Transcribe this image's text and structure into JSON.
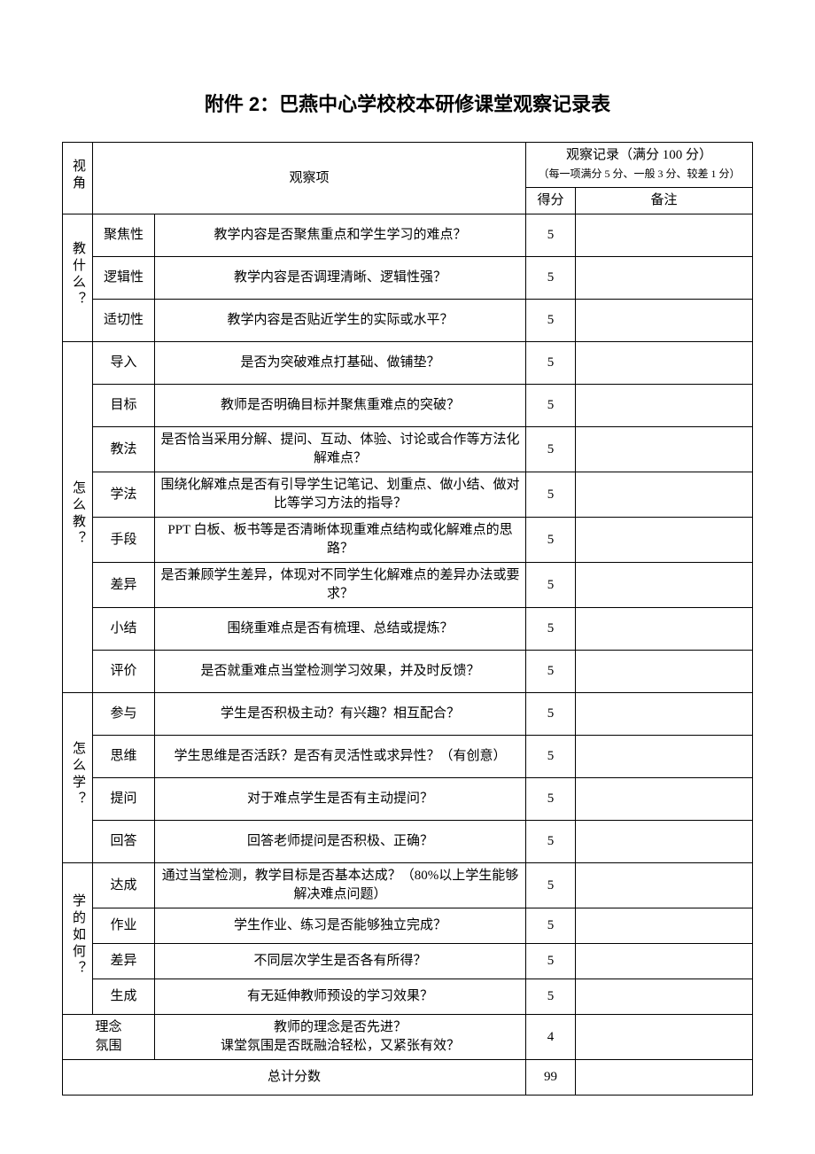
{
  "title": "附件 2：巴燕中心学校校本研修课堂观察记录表",
  "headers": {
    "perspective": "视角",
    "observation_item": "观察项",
    "record_title": "观察记录（满分 100 分）",
    "record_subtitle": "（每一项满分 5 分、一般 3 分、较差 1 分）",
    "score": "得分",
    "note": "备注"
  },
  "groups": [
    {
      "label": "教什么？",
      "rows": [
        {
          "item": "聚焦性",
          "question": "教学内容是否聚焦重点和学生学习的难点？",
          "score": "5",
          "note": ""
        },
        {
          "item": "逻辑性",
          "question": "教学内容是否调理清晰、逻辑性强？",
          "score": "5",
          "note": ""
        },
        {
          "item": "适切性",
          "question": "教学内容是否贴近学生的实际或水平？",
          "score": "5",
          "note": ""
        }
      ]
    },
    {
      "label": "怎么教？",
      "rows": [
        {
          "item": "导入",
          "question": "是否为突破难点打基础、做铺垫？",
          "score": "5",
          "note": ""
        },
        {
          "item": "目标",
          "question": "教师是否明确目标并聚焦重难点的突破？",
          "score": "5",
          "note": ""
        },
        {
          "item": "教法",
          "question": "是否恰当采用分解、提问、互动、体验、讨论或合作等方法化解难点？",
          "score": "5",
          "note": ""
        },
        {
          "item": "学法",
          "question": "围绕化解难点是否有引导学生记笔记、划重点、做小结、做对比等学习方法的指导？",
          "score": "5",
          "note": ""
        },
        {
          "item": "手段",
          "question": "PPT 白板、板书等是否清晰体现重难点结构或化解难点的思路？",
          "score": "5",
          "note": ""
        },
        {
          "item": "差异",
          "question": "是否兼顾学生差异，体现对不同学生化解难点的差异办法或要求？",
          "score": "5",
          "note": ""
        },
        {
          "item": "小结",
          "question": "围绕重难点是否有梳理、总结或提炼？",
          "score": "5",
          "note": ""
        },
        {
          "item": "评价",
          "question": "是否就重难点当堂检测学习效果，并及时反馈？",
          "score": "5",
          "note": ""
        }
      ]
    },
    {
      "label": "怎么学？",
      "rows": [
        {
          "item": "参与",
          "question": "学生是否积极主动？有兴趣？相互配合？",
          "score": "5",
          "note": ""
        },
        {
          "item": "思维",
          "question": "学生思维是否活跃？是否有灵活性或求异性？（有创意）",
          "score": "5",
          "note": ""
        },
        {
          "item": "提问",
          "question": "对于难点学生是否有主动提问？",
          "score": "5",
          "note": ""
        },
        {
          "item": "回答",
          "question": "回答老师提问是否积极、正确？",
          "score": "5",
          "note": ""
        }
      ]
    },
    {
      "label": "学的如何？",
      "rows": [
        {
          "item": "达成",
          "question": "通过当堂检测，教学目标是否基本达成？（80%以上学生能够解决难点问题）",
          "score": "5",
          "note": ""
        },
        {
          "item": "作业",
          "question": "学生作业、练习是否能够独立完成？",
          "score": "5",
          "note": ""
        },
        {
          "item": "差异",
          "question": "不同层次学生是否各有所得？",
          "score": "5",
          "note": ""
        },
        {
          "item": "生成",
          "question": "有无延伸教师预设的学习效果？",
          "score": "5",
          "note": ""
        }
      ]
    }
  ],
  "concept_row": {
    "item": "理念\n氛围",
    "question": "教师的理念是否先进？\n课堂氛围是否既融洽轻松，又紧张有效？",
    "score": "4",
    "note": ""
  },
  "total_row": {
    "label": "总计分数",
    "score": "99",
    "note": ""
  },
  "table_style": {
    "border_color": "#000000",
    "background_color": "#ffffff",
    "text_color": "#000000",
    "title_fontsize": 22,
    "body_fontsize": 15,
    "subtitle_fontsize": 12
  }
}
